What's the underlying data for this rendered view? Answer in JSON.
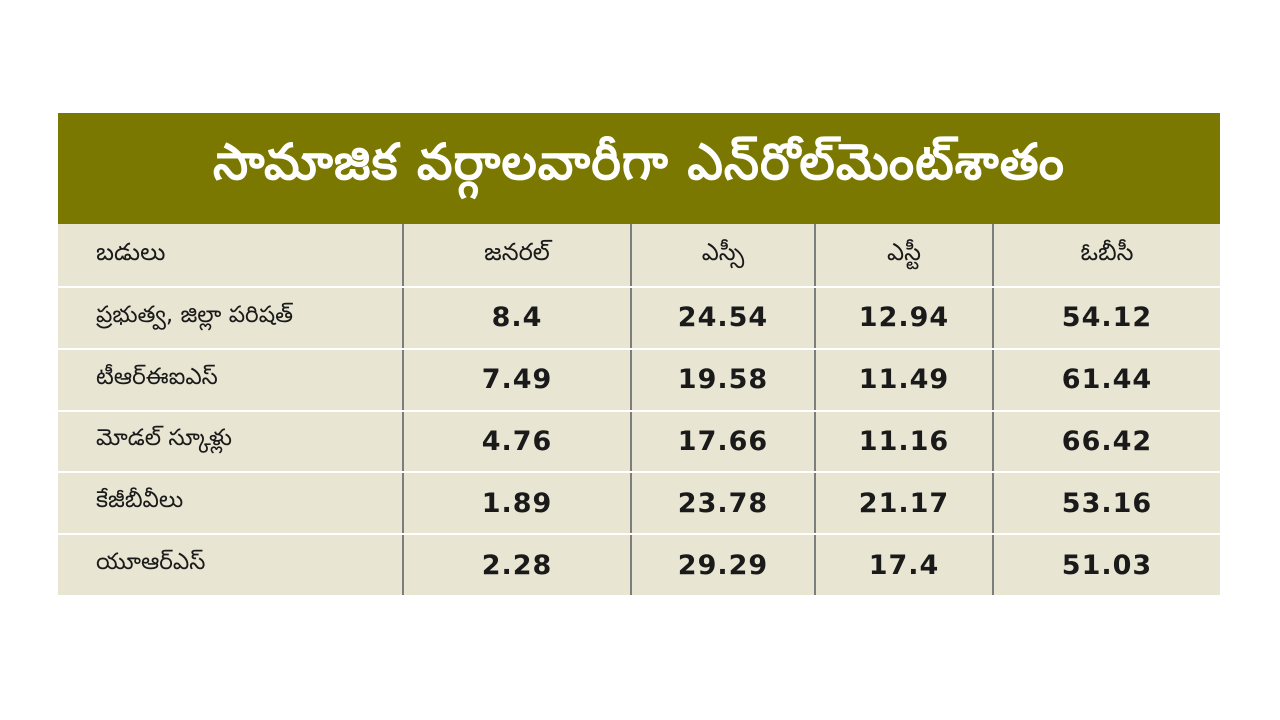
{
  "chart_data": {
    "type": "table",
    "title": "సామాజిక వర్గాలవారీగా ఎన్‌రోల్‌మెంట్‌శాతం",
    "columns": [
      "బడులు",
      "జనరల్",
      "ఎస్సీ",
      "ఎస్టీ",
      "ఓబీసీ"
    ],
    "rows": [
      {
        "label": "ప్రభుత్వ, జిల్లా పరిషత్",
        "values": [
          "8.4",
          "24.54",
          "12.94",
          "54.12"
        ]
      },
      {
        "label": "టీఆర్ఈఐఎస్",
        "values": [
          "7.49",
          "19.58",
          "11.49",
          "61.44"
        ]
      },
      {
        "label": "మోడల్ స్కూళ్లు",
        "values": [
          "4.76",
          "17.66",
          "11.16",
          "66.42"
        ]
      },
      {
        "label": "కేజీబీవీలు",
        "values": [
          "1.89",
          "23.78",
          "21.17",
          "53.16"
        ]
      },
      {
        "label": "యూఆర్ఎస్",
        "values": [
          "2.28",
          "29.29",
          "17.4",
          "51.03"
        ]
      }
    ]
  },
  "colors": {
    "title_background": "#7a7800",
    "title_text": "#ffffff",
    "table_background": "#e8e5d3",
    "column_divider": "#7d7d7d",
    "row_divider": "#ffffff"
  }
}
